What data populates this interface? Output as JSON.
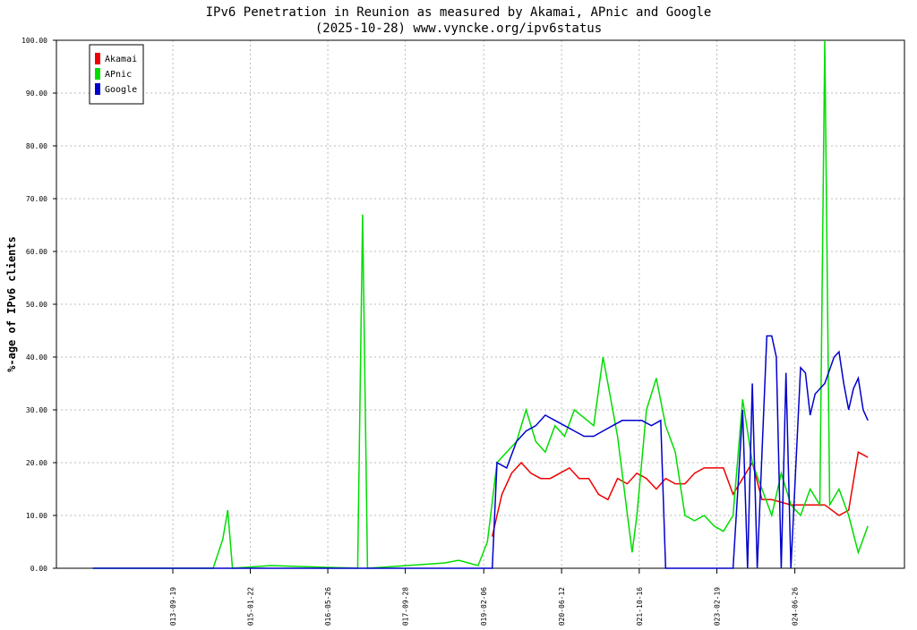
{
  "chart_data": {
    "type": "line",
    "title": "IPv6 Penetration in Reunion as measured by Akamai, APnic and Google",
    "subtitle": "(2025-10-28) www.vyncke.org/ipv6status",
    "y_label": "%-age of IPv6 clients",
    "xlim": [
      "2011-09-14",
      "2026-05-20"
    ],
    "xticks": [
      "2013-09-19",
      "2015-01-22",
      "2016-05-26",
      "2017-09-28",
      "2019-02-06",
      "2020-06-12",
      "2021-10-16",
      "2023-02-19",
      "2024-06-26"
    ],
    "ylim": [
      0,
      100
    ],
    "yticks": [
      {
        "value": 0,
        "label": "0.00"
      },
      {
        "value": 10,
        "label": "10.00"
      },
      {
        "value": 20,
        "label": "20.00"
      },
      {
        "value": 30,
        "label": "30.00"
      },
      {
        "value": 40,
        "label": "40.00"
      },
      {
        "value": 50,
        "label": "50.00"
      },
      {
        "value": 60,
        "label": "60.00"
      },
      {
        "value": 70,
        "label": "70.00"
      },
      {
        "value": 80,
        "label": "80.00"
      },
      {
        "value": 90,
        "label": "90.00"
      },
      {
        "value": 100,
        "label": "100.00"
      }
    ],
    "grid": true,
    "legend": "top-left",
    "series": [
      {
        "name": "Akamai",
        "color": "#ee0000",
        "x": [
          "2019-04-01",
          "2019-05-01",
          "2019-06-01",
          "2019-08-01",
          "2019-10-01",
          "2019-12-01",
          "2020-02-01",
          "2020-04-01",
          "2020-06-01",
          "2020-08-01",
          "2020-10-01",
          "2020-12-01",
          "2021-02-01",
          "2021-04-01",
          "2021-06-01",
          "2021-08-01",
          "2021-10-01",
          "2021-12-01",
          "2022-02-01",
          "2022-04-01",
          "2022-06-01",
          "2022-08-01",
          "2022-10-01",
          "2022-12-01",
          "2023-02-01",
          "2023-04-01",
          "2023-06-01",
          "2023-08-01",
          "2023-10-01",
          "2023-12-01",
          "2024-02-01",
          "2024-06-01",
          "2024-10-01",
          "2025-01-01",
          "2025-04-01",
          "2025-06-01",
          "2025-08-01",
          "2025-10-01"
        ],
        "values": [
          6,
          10,
          14,
          18,
          20,
          18,
          17,
          17,
          18,
          19,
          17,
          17,
          14,
          13,
          17,
          16,
          18,
          17,
          15,
          17,
          16,
          16,
          18,
          19,
          19,
          19,
          14,
          17,
          20,
          13,
          13,
          12,
          12,
          12,
          10,
          11,
          22,
          21
        ]
      },
      {
        "name": "APnic",
        "color": "#00dd00",
        "x": [
          "2012-05-01",
          "2014-06-01",
          "2014-08-01",
          "2014-09-01",
          "2014-10-01",
          "2015-06-01",
          "2016-12-01",
          "2017-01-01",
          "2017-02-01",
          "2018-06-01",
          "2018-09-01",
          "2019-01-01",
          "2019-03-01",
          "2019-05-01",
          "2019-07-01",
          "2019-09-01",
          "2019-11-01",
          "2020-01-01",
          "2020-03-01",
          "2020-05-01",
          "2020-07-01",
          "2020-09-01",
          "2021-01-01",
          "2021-03-01",
          "2021-06-01",
          "2021-09-01",
          "2021-10-01",
          "2021-12-01",
          "2022-02-01",
          "2022-04-01",
          "2022-06-01",
          "2022-08-01",
          "2022-10-01",
          "2022-12-01",
          "2023-02-01",
          "2023-04-01",
          "2023-06-01",
          "2023-08-01",
          "2023-10-01",
          "2023-12-01",
          "2024-02-01",
          "2024-04-01",
          "2024-06-01",
          "2024-08-01",
          "2024-10-01",
          "2024-12-01",
          "2025-01-01",
          "2025-02-01",
          "2025-04-01",
          "2025-06-01",
          "2025-08-01",
          "2025-10-01"
        ],
        "values": [
          0,
          0,
          5.5,
          11,
          0,
          0.5,
          0,
          67,
          0,
          1,
          1.5,
          0.5,
          5,
          20,
          22,
          24,
          30,
          24,
          22,
          27,
          25,
          30,
          27,
          40,
          25,
          3,
          10,
          30,
          36,
          27,
          22,
          10,
          9,
          10,
          8,
          7,
          10,
          32,
          20,
          15,
          10,
          18,
          12,
          10,
          15,
          12,
          100,
          12,
          15,
          10,
          3,
          8
        ]
      },
      {
        "name": "Google",
        "color": "#0000cc",
        "x": [
          "2012-05-01",
          "2019-04-01",
          "2019-05-01",
          "2019-07-01",
          "2019-09-01",
          "2019-11-01",
          "2020-01-01",
          "2020-03-01",
          "2020-05-01",
          "2020-07-01",
          "2020-09-01",
          "2020-11-01",
          "2021-01-01",
          "2021-03-01",
          "2021-05-01",
          "2021-07-01",
          "2021-09-01",
          "2021-11-01",
          "2022-01-01",
          "2022-03-01",
          "2022-04-01",
          "2023-06-01",
          "2023-08-01",
          "2023-09-01",
          "2023-10-01",
          "2023-11-01",
          "2024-01-01",
          "2024-02-01",
          "2024-03-01",
          "2024-04-01",
          "2024-05-01",
          "2024-06-01",
          "2024-08-01",
          "2024-09-01",
          "2024-10-01",
          "2024-11-01",
          "2025-01-01",
          "2025-03-01",
          "2025-04-01",
          "2025-05-01",
          "2025-06-01",
          "2025-07-01",
          "2025-08-01",
          "2025-09-01",
          "2025-10-01"
        ],
        "values": [
          0,
          0,
          20,
          19,
          24,
          26,
          27,
          29,
          28,
          27,
          26,
          25,
          25,
          26,
          27,
          28,
          28,
          28,
          27,
          28,
          0,
          0,
          30,
          0,
          35,
          0,
          44,
          44,
          40,
          0,
          37,
          0,
          38,
          37,
          29,
          33,
          35,
          40,
          41,
          35,
          30,
          34,
          36,
          30,
          28
        ]
      }
    ]
  }
}
